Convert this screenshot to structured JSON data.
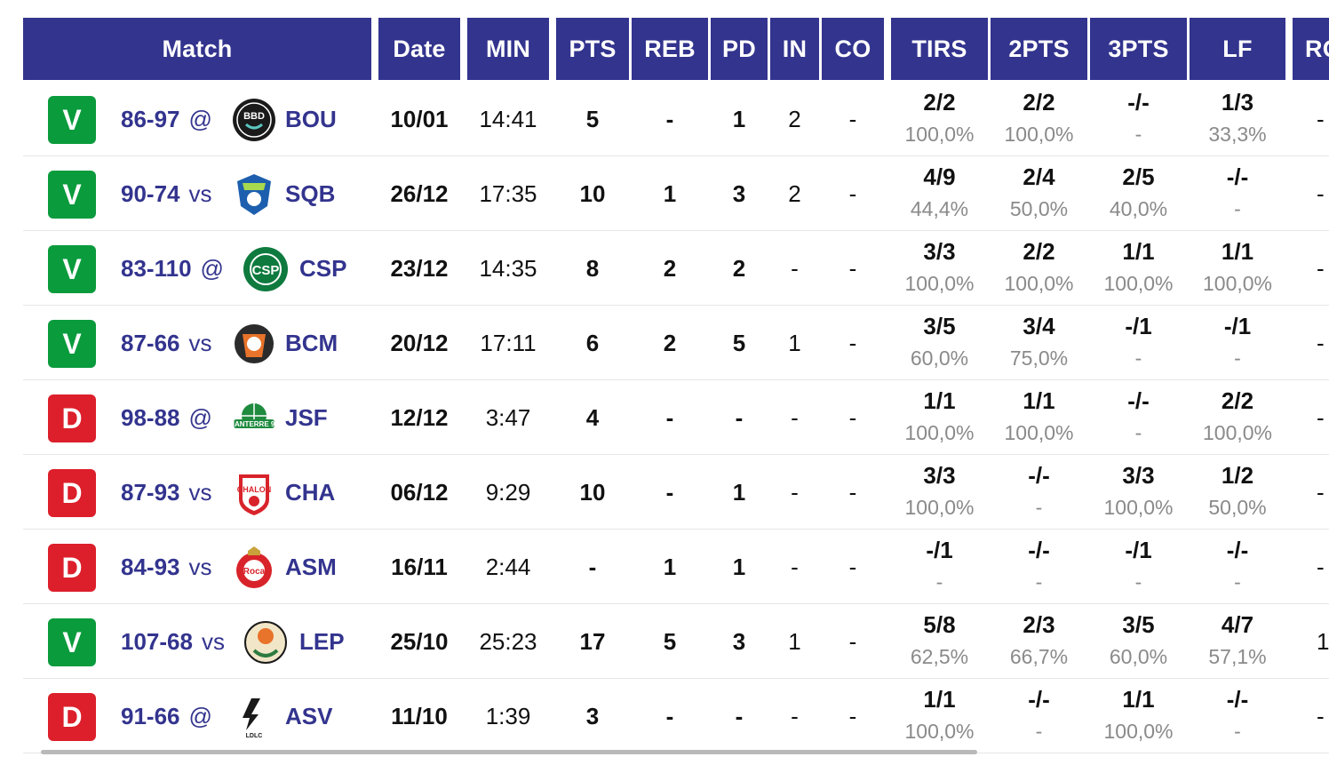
{
  "header": {
    "match": "Match",
    "date": "Date",
    "min": "MIN",
    "pts": "PTS",
    "reb": "REB",
    "pd": "PD",
    "in": "IN",
    "co": "CO",
    "tirs": "TIRS",
    "twopts": "2PTS",
    "threepts": "3PTS",
    "lf": "LF",
    "ro": "RO"
  },
  "colors": {
    "header_bg": "#33348e",
    "win": "#0a9b3c",
    "loss": "#dc1f2b",
    "team_text": "#33348e"
  },
  "rows": [
    {
      "result": "V",
      "score": "86-97",
      "venue": "@",
      "logo": "bouloazac-logo",
      "team": "BOU",
      "date": "10/01",
      "min": "14:41",
      "pts": "5",
      "reb": "-",
      "pd": "1",
      "in": "2",
      "co": "-",
      "tirs": "2/2",
      "tirs_pct": "100,0%",
      "p2": "2/2",
      "p2_pct": "100,0%",
      "p3": "-/-",
      "p3_pct": "-",
      "lf": "1/3",
      "lf_pct": "33,3%",
      "ro": "-"
    },
    {
      "result": "V",
      "score": "90-74",
      "venue": "vs",
      "logo": "saint-quentin-logo",
      "team": "SQB",
      "date": "26/12",
      "min": "17:35",
      "pts": "10",
      "reb": "1",
      "pd": "3",
      "in": "2",
      "co": "-",
      "tirs": "4/9",
      "tirs_pct": "44,4%",
      "p2": "2/4",
      "p2_pct": "50,0%",
      "p3": "2/5",
      "p3_pct": "40,0%",
      "lf": "-/-",
      "lf_pct": "-",
      "ro": "-"
    },
    {
      "result": "V",
      "score": "83-110",
      "venue": "@",
      "logo": "limoges-csp-logo",
      "team": "CSP",
      "date": "23/12",
      "min": "14:35",
      "pts": "8",
      "reb": "2",
      "pd": "2",
      "in": "-",
      "co": "-",
      "tirs": "3/3",
      "tirs_pct": "100,0%",
      "p2": "2/2",
      "p2_pct": "100,0%",
      "p3": "1/1",
      "p3_pct": "100,0%",
      "lf": "1/1",
      "lf_pct": "100,0%",
      "ro": "-"
    },
    {
      "result": "V",
      "score": "87-66",
      "venue": "vs",
      "logo": "bcm-logo",
      "team": "BCM",
      "date": "20/12",
      "min": "17:11",
      "pts": "6",
      "reb": "2",
      "pd": "5",
      "in": "1",
      "co": "-",
      "tirs": "3/5",
      "tirs_pct": "60,0%",
      "p2": "3/4",
      "p2_pct": "75,0%",
      "p3": "-/1",
      "p3_pct": "-",
      "lf": "-/1",
      "lf_pct": "-",
      "ro": "-"
    },
    {
      "result": "D",
      "score": "98-88",
      "venue": "@",
      "logo": "nanterre-logo",
      "team": "JSF",
      "date": "12/12",
      "min": "3:47",
      "pts": "4",
      "reb": "-",
      "pd": "-",
      "in": "-",
      "co": "-",
      "tirs": "1/1",
      "tirs_pct": "100,0%",
      "p2": "1/1",
      "p2_pct": "100,0%",
      "p3": "-/-",
      "p3_pct": "-",
      "lf": "2/2",
      "lf_pct": "100,0%",
      "ro": "-"
    },
    {
      "result": "D",
      "score": "87-93",
      "venue": "vs",
      "logo": "chalon-logo",
      "team": "CHA",
      "date": "06/12",
      "min": "9:29",
      "pts": "10",
      "reb": "-",
      "pd": "1",
      "in": "-",
      "co": "-",
      "tirs": "3/3",
      "tirs_pct": "100,0%",
      "p2": "-/-",
      "p2_pct": "-",
      "p3": "3/3",
      "p3_pct": "100,0%",
      "lf": "1/2",
      "lf_pct": "50,0%",
      "ro": "-"
    },
    {
      "result": "D",
      "score": "84-93",
      "venue": "vs",
      "logo": "monaco-logo",
      "team": "ASM",
      "date": "16/11",
      "min": "2:44",
      "pts": "-",
      "reb": "1",
      "pd": "1",
      "in": "-",
      "co": "-",
      "tirs": "-/1",
      "tirs_pct": "-",
      "p2": "-/-",
      "p2_pct": "-",
      "p3": "-/1",
      "p3_pct": "-",
      "lf": "-/-",
      "lf_pct": "-",
      "ro": "-"
    },
    {
      "result": "V",
      "score": "107-68",
      "venue": "vs",
      "logo": "le-portel-logo",
      "team": "LEP",
      "date": "25/10",
      "min": "25:23",
      "pts": "17",
      "reb": "5",
      "pd": "3",
      "in": "1",
      "co": "-",
      "tirs": "5/8",
      "tirs_pct": "62,5%",
      "p2": "2/3",
      "p2_pct": "66,7%",
      "p3": "3/5",
      "p3_pct": "60,0%",
      "lf": "4/7",
      "lf_pct": "57,1%",
      "ro": "1"
    },
    {
      "result": "D",
      "score": "91-66",
      "venue": "@",
      "logo": "asvel-logo",
      "team": "ASV",
      "date": "11/10",
      "min": "1:39",
      "pts": "3",
      "reb": "-",
      "pd": "-",
      "in": "-",
      "co": "-",
      "tirs": "1/1",
      "tirs_pct": "100,0%",
      "p2": "-/-",
      "p2_pct": "-",
      "p3": "1/1",
      "p3_pct": "100,0%",
      "lf": "-/-",
      "lf_pct": "-",
      "ro": "-"
    }
  ]
}
